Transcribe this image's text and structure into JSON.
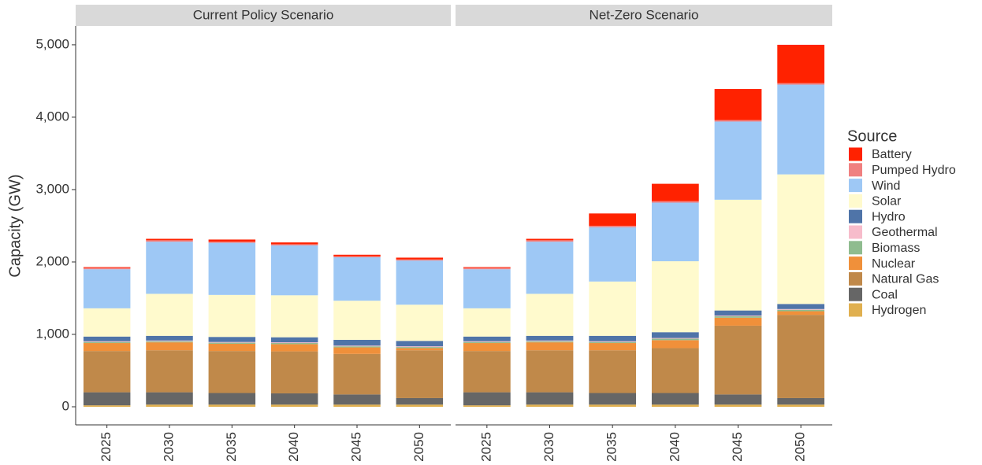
{
  "chart_data": [
    {
      "type": "bar",
      "stacked": true,
      "title": "Current Policy Scenario",
      "ylabel": "Capacity (GW)",
      "legend_title": "Source",
      "categories": [
        "2025",
        "2030",
        "2035",
        "2040",
        "2045",
        "2050"
      ],
      "ylim": [
        -250,
        5260
      ],
      "yticks": [
        0,
        {
          "value": 1000,
          "label": "1,000"
        },
        {
          "value": 2000,
          "label": "2,000"
        },
        {
          "value": 3000,
          "label": "3,000"
        },
        {
          "value": 4000,
          "label": "4,000"
        },
        {
          "value": 5000,
          "label": "5,000"
        }
      ],
      "series": [
        {
          "name": "Hydrogen",
          "color": "#e0b050",
          "values": [
            20,
            30,
            30,
            30,
            30,
            30
          ]
        },
        {
          "name": "Coal",
          "color": "#666666",
          "values": [
            180,
            170,
            160,
            155,
            140,
            90
          ]
        },
        {
          "name": "Natural Gas",
          "color": "#c0894a",
          "values": [
            570,
            580,
            580,
            580,
            560,
            660
          ]
        },
        {
          "name": "Nuclear",
          "color": "#f0903a",
          "values": [
            110,
            110,
            100,
            100,
            90,
            30
          ]
        },
        {
          "name": "Biomass",
          "color": "#8fbc8f",
          "values": [
            15,
            15,
            15,
            15,
            15,
            15
          ]
        },
        {
          "name": "Geothermal",
          "color": "#f7bccb",
          "values": [
            10,
            10,
            10,
            10,
            10,
            10
          ]
        },
        {
          "name": "Hydro",
          "color": "#4f74a8",
          "values": [
            65,
            65,
            70,
            70,
            80,
            75
          ]
        },
        {
          "name": "Solar",
          "color": "#fffacd",
          "values": [
            390,
            580,
            580,
            580,
            540,
            500
          ]
        },
        {
          "name": "Wind",
          "color": "#9ec8f5",
          "values": [
            540,
            720,
            720,
            690,
            600,
            610
          ]
        },
        {
          "name": "Pumped Hydro",
          "color": "#f08080",
          "values": [
            20,
            20,
            15,
            15,
            15,
            15
          ]
        },
        {
          "name": "Battery",
          "color": "#ff2200",
          "values": [
            10,
            20,
            30,
            25,
            20,
            25
          ]
        }
      ]
    },
    {
      "type": "bar",
      "stacked": true,
      "title": "Net-Zero Scenario",
      "categories": [
        "2025",
        "2030",
        "2035",
        "2040",
        "2045",
        "2050"
      ],
      "series": [
        {
          "name": "Hydrogen",
          "color": "#e0b050",
          "values": [
            20,
            30,
            30,
            30,
            30,
            30
          ]
        },
        {
          "name": "Coal",
          "color": "#666666",
          "values": [
            180,
            170,
            160,
            160,
            140,
            90
          ]
        },
        {
          "name": "Natural Gas",
          "color": "#c0894a",
          "values": [
            570,
            580,
            590,
            620,
            950,
            1150
          ]
        },
        {
          "name": "Nuclear",
          "color": "#f0903a",
          "values": [
            110,
            110,
            100,
            110,
            110,
            50
          ]
        },
        {
          "name": "Biomass",
          "color": "#8fbc8f",
          "values": [
            15,
            15,
            15,
            20,
            20,
            20
          ]
        },
        {
          "name": "Geothermal",
          "color": "#f7bccb",
          "values": [
            10,
            10,
            10,
            10,
            10,
            10
          ]
        },
        {
          "name": "Hydro",
          "color": "#4f74a8",
          "values": [
            65,
            65,
            75,
            80,
            70,
            70
          ]
        },
        {
          "name": "Solar",
          "color": "#fffacd",
          "values": [
            390,
            580,
            750,
            980,
            1530,
            1790
          ]
        },
        {
          "name": "Wind",
          "color": "#9ec8f5",
          "values": [
            540,
            720,
            750,
            810,
            1080,
            1240
          ]
        },
        {
          "name": "Pumped Hydro",
          "color": "#f08080",
          "values": [
            20,
            20,
            20,
            20,
            20,
            20
          ]
        },
        {
          "name": "Battery",
          "color": "#ff2200",
          "values": [
            10,
            20,
            170,
            240,
            430,
            530
          ]
        }
      ]
    }
  ]
}
